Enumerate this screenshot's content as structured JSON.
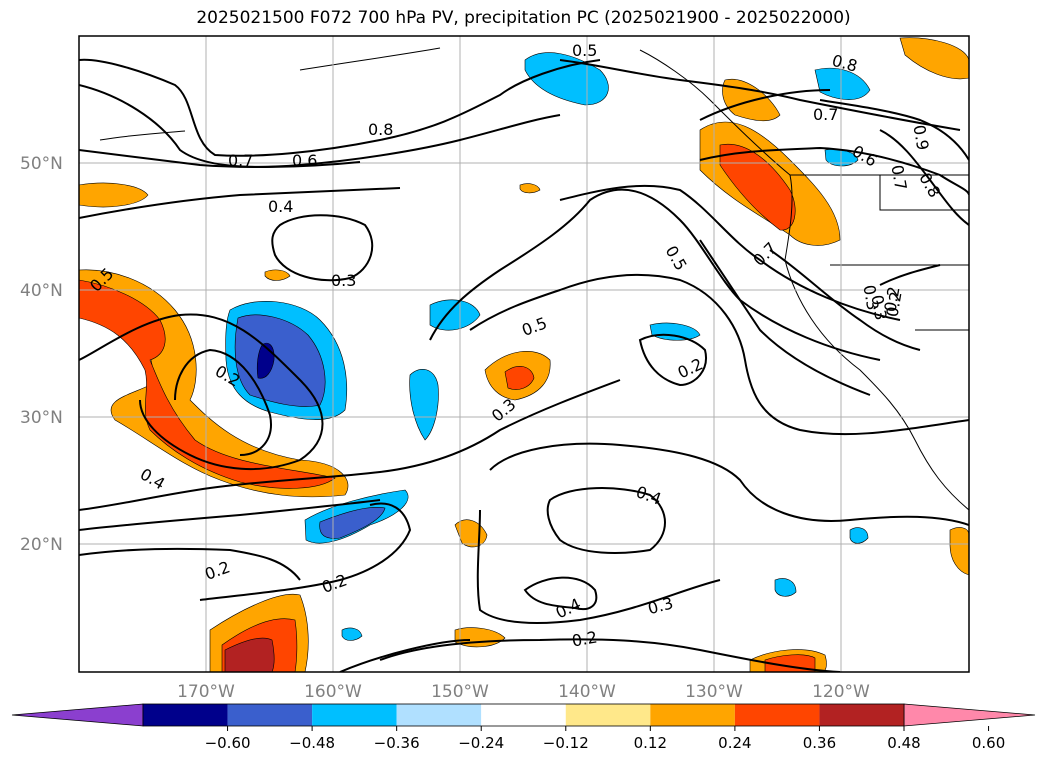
{
  "title": "2025021500 F072 700 hPa PV, precipitation PC (2025021900 - 2025022000)",
  "lat_labels": [
    "50°N",
    "40°N",
    "30°N",
    "20°N"
  ],
  "lon_labels": [
    "170°W",
    "160°W",
    "150°W",
    "140°W",
    "130°W",
    "120°W"
  ],
  "contour_labels": [
    "0.5",
    "0.8",
    "0.7",
    "0.6",
    "0.4",
    "0.3",
    "0.5",
    "0.2",
    "0.4",
    "0.2",
    "0.2",
    "0.3",
    "0.2",
    "0.8",
    "0.7",
    "0.6",
    "0.9",
    "0.8",
    "0.7",
    "0.5",
    "0.5",
    "0.2",
    "0.3",
    "0.4",
    "0.4",
    "0.3",
    "0.2",
    "0.7",
    "0.3",
    "0.2"
  ],
  "colorbar": {
    "colors": [
      "#8b3fcf",
      "#00008b",
      "#3a5fcd",
      "#00bfff",
      "#b0e0ff",
      "#ffffff",
      "#ffe88a",
      "#ffa500",
      "#ff4500",
      "#b22222",
      "#ff88aa"
    ],
    "ticks": [
      "−0.60",
      "−0.48",
      "−0.36",
      "−0.24",
      "−0.12",
      "0.12",
      "0.24",
      "0.36",
      "0.48",
      "0.60"
    ]
  }
}
